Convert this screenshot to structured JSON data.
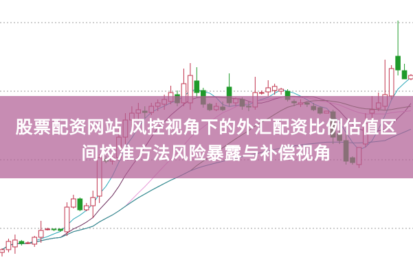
{
  "title": {
    "line1": "股票配资网站  风控视角下的外汇配资比例估值区",
    "line2": "间校准方法风险暴露与补偿视角"
  },
  "colors": {
    "up": "#c0304a",
    "down": "#1f9a2a",
    "grid": "#999999",
    "overlay": "#b26096",
    "ma": [
      "#2aa7b8",
      "#6a2a5a",
      "#e89ad8",
      "#3c6a2c",
      "#2a8a9a"
    ]
  },
  "chart_data": {
    "type": "candlestick",
    "title": "",
    "xlabel": "",
    "ylabel": "",
    "ylim": [
      0,
      400
    ],
    "grid": true,
    "grid_levels": [
      67,
      167,
      267,
      367
    ],
    "moving_average_periods": [
      5,
      10,
      20,
      30,
      60
    ],
    "candles": [
      [
        32,
        38,
        26,
        36
      ],
      [
        36,
        52,
        32,
        48
      ],
      [
        40,
        58,
        30,
        50
      ],
      [
        48,
        50,
        42,
        45
      ],
      [
        45,
        48,
        44,
        46
      ],
      [
        44,
        56,
        40,
        54
      ],
      [
        54,
        78,
        46,
        64
      ],
      [
        66,
        68,
        64,
        66
      ],
      [
        66,
        66,
        63,
        65
      ],
      [
        66,
        66,
        62,
        64
      ],
      [
        62,
        105,
        56,
        98
      ],
      [
        98,
        116,
        96,
        110
      ],
      [
        110,
        112,
        92,
        94
      ],
      [
        94,
        104,
        92,
        100
      ],
      [
        100,
        122,
        82,
        112
      ],
      [
        114,
        175,
        104,
        170
      ],
      [
        168,
        172,
        162,
        165
      ],
      [
        165,
        175,
        160,
        170
      ],
      [
        170,
        215,
        165,
        200
      ],
      [
        200,
        235,
        190,
        225
      ],
      [
        225,
        245,
        215,
        235
      ],
      [
        235,
        250,
        225,
        240
      ],
      [
        238,
        245,
        228,
        236
      ],
      [
        236,
        250,
        232,
        245
      ],
      [
        245,
        255,
        238,
        250
      ],
      [
        248,
        262,
        240,
        255
      ],
      [
        252,
        275,
        248,
        265
      ],
      [
        262,
        268,
        245,
        250
      ],
      [
        250,
        300,
        245,
        278
      ],
      [
        250,
        308,
        240,
        290
      ],
      [
        282,
        302,
        258,
        265
      ],
      [
        268,
        272,
        243,
        248
      ],
      [
        248,
        250,
        238,
        240
      ],
      [
        240,
        250,
        238,
        245
      ],
      [
        244,
        252,
        238,
        240
      ],
      [
        273,
        293,
        245,
        250
      ],
      [
        250,
        258,
        245,
        256
      ],
      [
        255,
        258,
        240,
        245
      ],
      [
        245,
        252,
        238,
        244
      ],
      [
        244,
        288,
        240,
        265
      ],
      [
        265,
        268,
        262,
        265
      ],
      [
        266,
        283,
        260,
        272
      ],
      [
        268,
        278,
        262,
        274
      ],
      [
        267,
        272,
        262,
        270
      ],
      [
        267,
        270,
        252,
        255
      ],
      [
        252,
        255,
        245,
        250
      ],
      [
        248,
        255,
        244,
        250
      ],
      [
        250,
        252,
        244,
        248
      ],
      [
        245,
        250,
        238,
        240
      ],
      [
        243,
        245,
        233,
        235
      ],
      [
        235,
        238,
        235,
        238
      ],
      [
        237,
        240,
        190,
        200
      ],
      [
        205,
        210,
        190,
        195
      ],
      [
        195,
        205,
        160,
        165
      ],
      [
        170,
        172,
        160,
        163
      ],
      [
        160,
        185,
        155,
        185
      ],
      [
        190,
        235,
        185,
        220
      ],
      [
        235,
        260,
        225,
        240
      ],
      [
        242,
        265,
        238,
        250
      ],
      [
        245,
        313,
        240,
        262
      ],
      [
        260,
        305,
        255,
        300
      ],
      [
        318,
        370,
        290,
        298
      ],
      [
        297,
        307,
        285,
        285
      ],
      [
        285,
        292,
        283,
        290
      ]
    ]
  }
}
